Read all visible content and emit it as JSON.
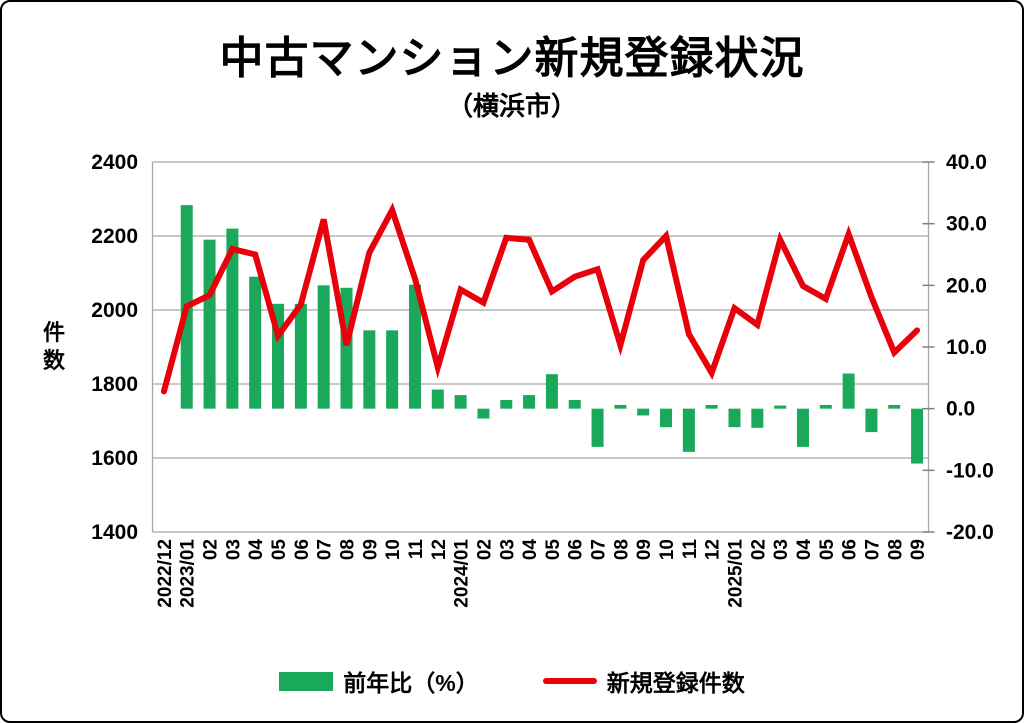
{
  "title": "中古マンション新規登録状況",
  "subtitle": "（横浜市）",
  "chart_data": {
    "type": "combo",
    "title": "中古マンション新規登録状況",
    "subtitle": "（横浜市）",
    "categories": [
      "2022/12",
      "2023/01",
      "02",
      "03",
      "04",
      "05",
      "06",
      "07",
      "08",
      "09",
      "10",
      "11",
      "12",
      "2024/01",
      "02",
      "03",
      "04",
      "05",
      "06",
      "07",
      "08",
      "09",
      "10",
      "11",
      "12",
      "2025/01",
      "02",
      "03",
      "04",
      "05",
      "06",
      "07",
      "08",
      "09"
    ],
    "series": [
      {
        "name": "前年比（%）",
        "type": "bar",
        "axis": "right",
        "color": "#1aa85a",
        "values": [
          null,
          33.0,
          27.4,
          29.2,
          21.4,
          17.0,
          17.0,
          20.0,
          19.6,
          12.7,
          12.7,
          20.1,
          3.1,
          2.2,
          -1.6,
          1.4,
          2.2,
          5.6,
          1.4,
          -6.2,
          0.6,
          -1.1,
          -3.0,
          -7.0,
          0.6,
          -3.0,
          -3.1,
          0.5,
          -6.2,
          0.6,
          5.7,
          -3.8,
          0.6,
          -8.9
        ]
      },
      {
        "name": "新規登録件数",
        "type": "line",
        "axis": "left",
        "color": "#e8000b",
        "values": [
          1780,
          2010,
          2040,
          2165,
          2150,
          1930,
          2015,
          2245,
          1905,
          2155,
          2270,
          2085,
          1845,
          2055,
          2020,
          2195,
          2190,
          2050,
          2090,
          2110,
          1905,
          2135,
          2200,
          1935,
          1830,
          2005,
          1960,
          2190,
          2065,
          2030,
          2205,
          2035,
          1885,
          1945
        ]
      }
    ],
    "left_axis": {
      "title": "件数",
      "min": 1400,
      "max": 2400,
      "step": 200,
      "tick_labels": [
        "2400",
        "2200",
        "2000",
        "1800",
        "1600",
        "1400"
      ]
    },
    "right_axis": {
      "min": -20,
      "max": 40,
      "step": 10,
      "tick_labels": [
        "40.0",
        "30.0",
        "20.0",
        "10.0",
        "0.0",
        "-10.0",
        "-20.0"
      ],
      "negative_label_color": "#c80000"
    },
    "grid": true,
    "legend_position": "bottom"
  }
}
